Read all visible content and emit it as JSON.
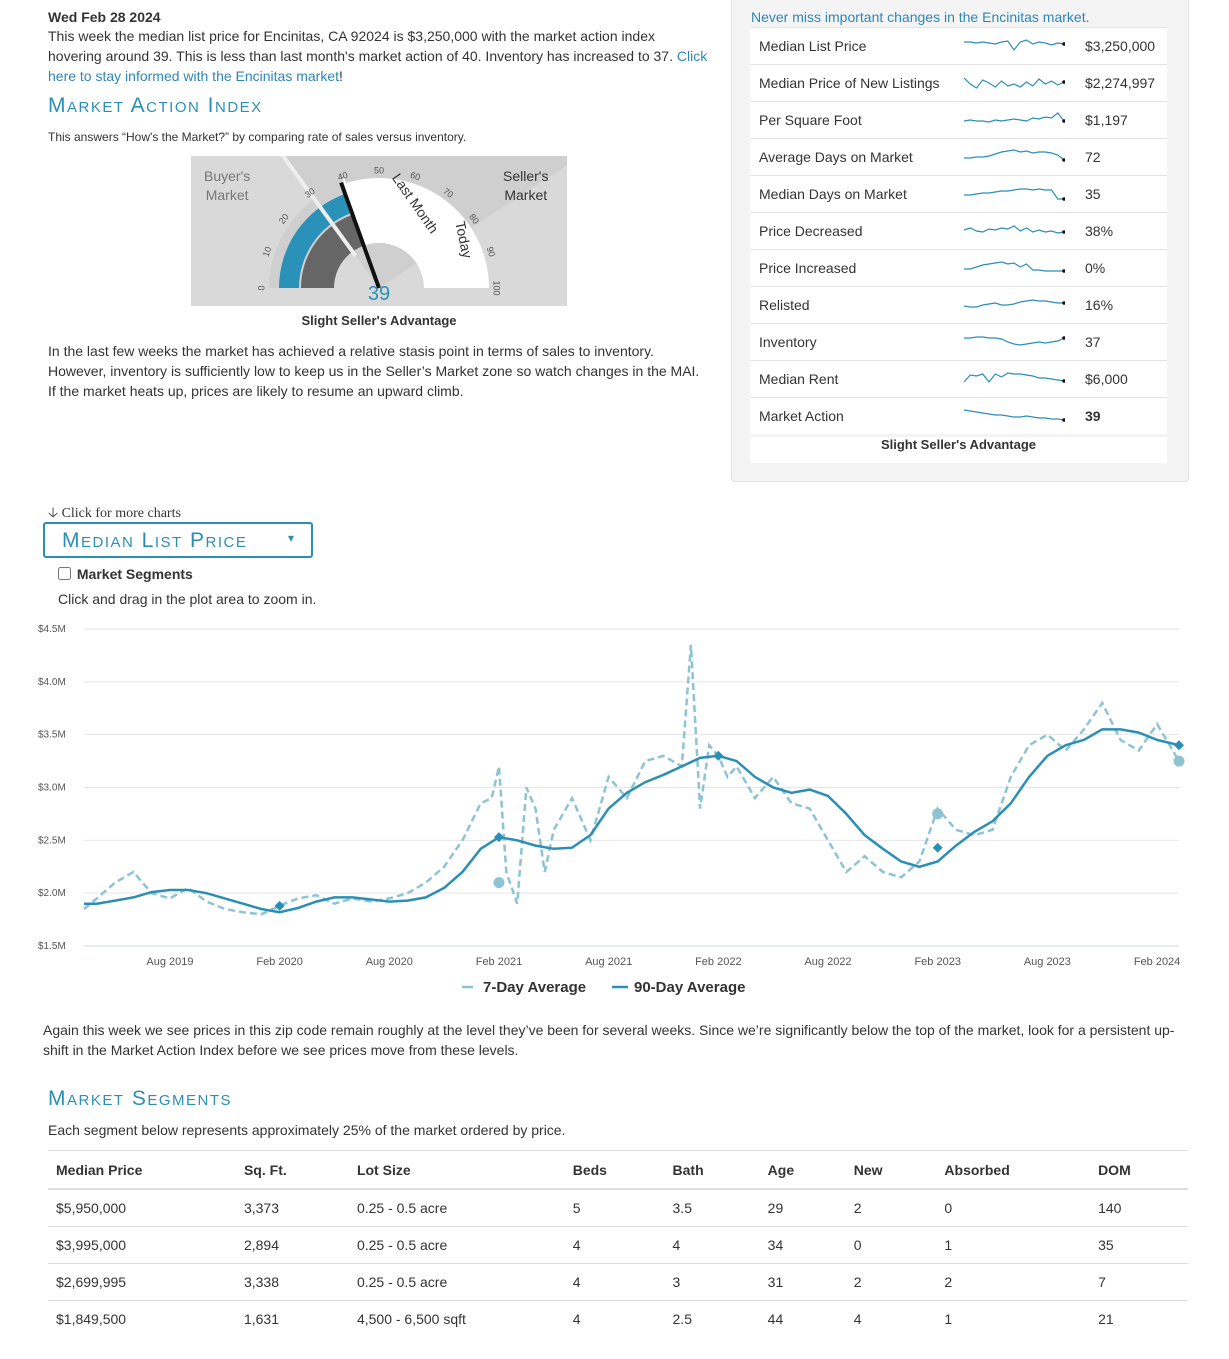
{
  "intro": {
    "date": "Wed Feb 28 2024",
    "text": "This week the median list price for Encinitas, CA 92024 is $3,250,000 with the market action index hovering around 39. This is less than last month's market action of 40. Inventory has increased to 37. ",
    "link": "Click here to stay informed with the Encinitas market",
    "suffix": "!"
  },
  "mai": {
    "title": "Market Action Index",
    "subtitle": "This answers “How's the Market?” by comparing rate of sales versus inventory.",
    "buyers_label_1": "Buyer's",
    "buyers_label_2": "Market",
    "sellers_label_1": "Seller's",
    "sellers_label_2": "Market",
    "ticks": [
      "0",
      "10",
      "20",
      "30",
      "40",
      "50",
      "60",
      "70",
      "80",
      "90",
      "100"
    ],
    "last_month_label": "Last Month",
    "today_label": "Today",
    "value": "39",
    "value_num": 39,
    "last_month_value": 40,
    "status": "Slight Seller's Advantage",
    "paragraph": "In the last few weeks the market has achieved a relative stasis point in terms of sales to inventory. However, inventory is sufficiently low to keep us in the Seller’s Market zone so watch changes in the MAI. If the market heats up, prices are likely to resume an upward climb."
  },
  "side": {
    "header_link": "Never miss important changes in the Encinitas market.",
    "rows": [
      {
        "label": "Median List Price",
        "value": "$3,250,000"
      },
      {
        "label": "Median Price of New Listings",
        "value": "$2,274,997"
      },
      {
        "label": "Per Square Foot",
        "value": "$1,197"
      },
      {
        "label": "Average Days on Market",
        "value": "72"
      },
      {
        "label": "Median Days on Market",
        "value": "35"
      },
      {
        "label": "Price Decreased",
        "value": "38%"
      },
      {
        "label": "Price Increased",
        "value": "0%"
      },
      {
        "label": "Relisted",
        "value": "16%"
      },
      {
        "label": "Inventory",
        "value": "37"
      },
      {
        "label": "Median Rent",
        "value": "$6,000"
      },
      {
        "label": "Market Action",
        "value": "39"
      }
    ],
    "footer": "Slight Seller's Advantage"
  },
  "chart_section": {
    "more_charts": "Click for more charts",
    "dropdown_label": "Median List Price",
    "segments_checkbox": "Market Segments",
    "zoom_hint": "Click and drag in the plot area to zoom in."
  },
  "chart_data": {
    "type": "line",
    "title": "Median List Price",
    "y_tick_labels": [
      "$4.5M",
      "$4.0M",
      "$3.5M",
      "$3.0M",
      "$2.5M",
      "$2.0M",
      "$1.5M"
    ],
    "ylim": [
      1.5,
      4.5
    ],
    "x_tick_labels": [
      "Aug 2019",
      "Feb 2020",
      "Aug 2020",
      "Feb 2021",
      "Aug 2021",
      "Feb 2022",
      "Aug 2022",
      "Feb 2023",
      "Aug 2023",
      "Feb 2024"
    ],
    "x_tick_positions": [
      6,
      12,
      18,
      24,
      30,
      36,
      42,
      48,
      54,
      60
    ],
    "xlim": [
      1.3,
      61.2
    ],
    "series": [
      {
        "name": "7-Day Average",
        "x": [
          1.3,
          2,
          3,
          4,
          5,
          6,
          7,
          8,
          9,
          10,
          11,
          12,
          13,
          14,
          15,
          16,
          17,
          18,
          19,
          20,
          21,
          22,
          23,
          23.6,
          24,
          24.4,
          25,
          25.5,
          26,
          26.5,
          27,
          28,
          29,
          30,
          31,
          32,
          33,
          34,
          34.5,
          35,
          35.5,
          36,
          36.5,
          37,
          38,
          39,
          40,
          41,
          42,
          43,
          44,
          45,
          46,
          47,
          48,
          49,
          50,
          51,
          52,
          53,
          54,
          55,
          56,
          57,
          58,
          59,
          60,
          61.2
        ],
        "values": [
          1.85,
          1.95,
          2.1,
          2.2,
          2.0,
          1.95,
          2.05,
          1.92,
          1.85,
          1.82,
          1.8,
          1.88,
          1.95,
          1.98,
          1.9,
          1.95,
          1.92,
          1.95,
          2.0,
          2.1,
          2.25,
          2.5,
          2.85,
          2.9,
          3.2,
          2.2,
          1.9,
          3.0,
          2.8,
          2.2,
          2.6,
          2.9,
          2.5,
          3.1,
          2.9,
          3.25,
          3.3,
          3.2,
          4.35,
          2.8,
          3.4,
          3.3,
          3.1,
          3.2,
          2.9,
          3.1,
          2.85,
          2.8,
          2.5,
          2.2,
          2.35,
          2.2,
          2.15,
          2.3,
          2.8,
          2.6,
          2.55,
          2.6,
          3.1,
          3.4,
          3.5,
          3.35,
          3.55,
          3.8,
          3.45,
          3.35,
          3.6,
          3.25
        ]
      },
      {
        "name": "90-Day Average",
        "x": [
          1.3,
          2,
          3,
          4,
          5,
          6,
          7,
          8,
          9,
          10,
          11,
          12,
          13,
          14,
          15,
          16,
          17,
          18,
          19,
          20,
          21,
          22,
          23,
          24,
          25,
          26,
          27,
          28,
          29,
          30,
          31,
          32,
          33,
          34,
          35,
          36,
          37,
          38,
          39,
          40,
          41,
          42,
          43,
          44,
          45,
          46,
          47,
          48,
          49,
          50,
          51,
          52,
          53,
          54,
          55,
          56,
          57,
          58,
          59,
          60,
          61.2
        ],
        "values": [
          1.9,
          1.9,
          1.93,
          1.96,
          2.01,
          2.03,
          2.03,
          2.0,
          1.95,
          1.9,
          1.85,
          1.82,
          1.86,
          1.92,
          1.96,
          1.96,
          1.94,
          1.92,
          1.93,
          1.96,
          2.05,
          2.2,
          2.42,
          2.53,
          2.5,
          2.45,
          2.42,
          2.43,
          2.55,
          2.8,
          2.95,
          3.05,
          3.12,
          3.2,
          3.28,
          3.3,
          3.25,
          3.1,
          3.0,
          2.95,
          2.98,
          2.92,
          2.75,
          2.55,
          2.42,
          2.3,
          2.25,
          2.3,
          2.45,
          2.58,
          2.68,
          2.85,
          3.1,
          3.3,
          3.4,
          3.45,
          3.55,
          3.55,
          3.52,
          3.45,
          3.4
        ]
      }
    ],
    "legend": [
      "7-Day Average",
      "90-Day Average"
    ]
  },
  "commentary": "Again this week we see prices in this zip code remain roughly at the level they’ve been for several weeks. Since we’re significantly below the top of the market, look for a persistent up-shift in the Market Action Index before we see prices move from these levels.",
  "segments": {
    "title": "Market Segments",
    "subtitle": "Each segment below represents approximately 25% of the market ordered by price.",
    "headers": [
      "Median Price",
      "Sq. Ft.",
      "Lot Size",
      "Beds",
      "Bath",
      "Age",
      "New",
      "Absorbed",
      "DOM"
    ],
    "rows": [
      [
        "$5,950,000",
        "3,373",
        "0.25 - 0.5 acre",
        "5",
        "3.5",
        "29",
        "2",
        "0",
        "140"
      ],
      [
        "$3,995,000",
        "2,894",
        "0.25 - 0.5 acre",
        "4",
        "4",
        "34",
        "0",
        "1",
        "35"
      ],
      [
        "$2,699,995",
        "3,338",
        "0.25 - 0.5 acre",
        "4",
        "3",
        "31",
        "2",
        "2",
        "7"
      ],
      [
        "$1,849,500",
        "1,631",
        "4,500 - 6,500 sqft",
        "4",
        "2.5",
        "44",
        "4",
        "1",
        "21"
      ]
    ]
  },
  "colors": {
    "accent": "#2b8fb5",
    "dashed": "#8ec3d4",
    "gauge_bg": "#d9d9d9",
    "gauge_blue": "#2a92b8",
    "gauge_gray": "#666666"
  }
}
